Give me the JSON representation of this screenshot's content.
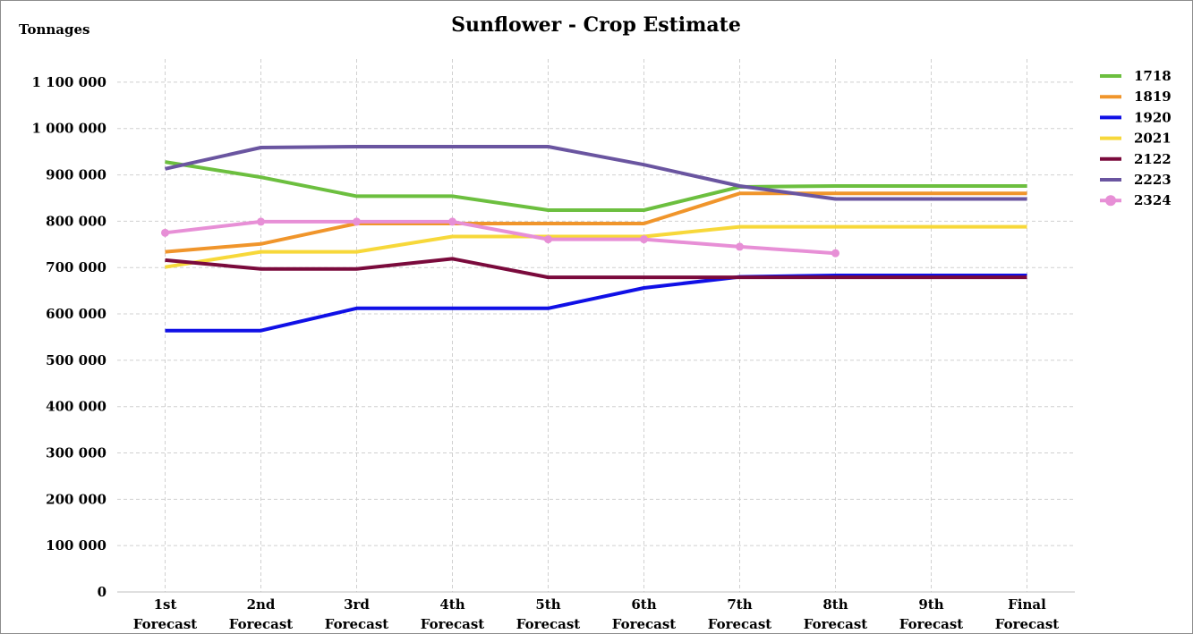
{
  "chart_data": {
    "type": "line",
    "title": "Sunflower - Crop Estimate",
    "ylabel": "Tonnages",
    "xlabel": "",
    "ylim": [
      0,
      1150000
    ],
    "y_ticks": [
      0,
      100000,
      200000,
      300000,
      400000,
      500000,
      600000,
      700000,
      800000,
      900000,
      1000000,
      1100000
    ],
    "y_tick_labels": [
      "0",
      "100 000",
      "200 000",
      "300 000",
      "400 000",
      "500 000",
      "600 000",
      "700 000",
      "800 000",
      "900 000",
      "1 000 000",
      "1 100 000"
    ],
    "categories": [
      [
        "1st",
        "Forecast"
      ],
      [
        "2nd",
        "Forecast"
      ],
      [
        "3rd",
        "Forecast"
      ],
      [
        "4th",
        "Forecast"
      ],
      [
        "5th",
        "Forecast"
      ],
      [
        "6th",
        "Forecast"
      ],
      [
        "7th",
        "Forecast"
      ],
      [
        "8th",
        "Forecast"
      ],
      [
        "9th",
        "Forecast"
      ],
      [
        "Final",
        "Forecast"
      ]
    ],
    "grid": true,
    "legend_position": "right",
    "series": [
      {
        "name": "1718",
        "color": "#6cbf3f",
        "markers": false,
        "values": [
          928000,
          895000,
          854000,
          854000,
          824000,
          824000,
          874000,
          876000,
          876000,
          876000
        ]
      },
      {
        "name": "1819",
        "color": "#f0952b",
        "markers": false,
        "values": [
          734000,
          751000,
          795000,
          795000,
          795000,
          795000,
          860000,
          860000,
          860000,
          860000
        ]
      },
      {
        "name": "1920",
        "color": "#1010e6",
        "markers": false,
        "values": [
          564000,
          564000,
          612000,
          612000,
          612000,
          656000,
          680000,
          683000,
          683000,
          683000
        ]
      },
      {
        "name": "2021",
        "color": "#f7d83a",
        "markers": false,
        "values": [
          701000,
          734000,
          734000,
          767000,
          767000,
          767000,
          788000,
          788000,
          788000,
          788000
        ]
      },
      {
        "name": "2122",
        "color": "#7a0a3c",
        "markers": false,
        "values": [
          716000,
          697000,
          697000,
          719000,
          679000,
          679000,
          679000,
          679000,
          679000,
          679000
        ]
      },
      {
        "name": "2223",
        "color": "#6a55a0",
        "markers": false,
        "values": [
          913000,
          959000,
          961000,
          961000,
          961000,
          922000,
          876000,
          848000,
          848000,
          848000
        ]
      },
      {
        "name": "2324",
        "color": "#e78fd6",
        "markers": true,
        "values": [
          775000,
          799000,
          799000,
          799000,
          761000,
          761000,
          745000,
          731000,
          null,
          null
        ]
      }
    ]
  }
}
